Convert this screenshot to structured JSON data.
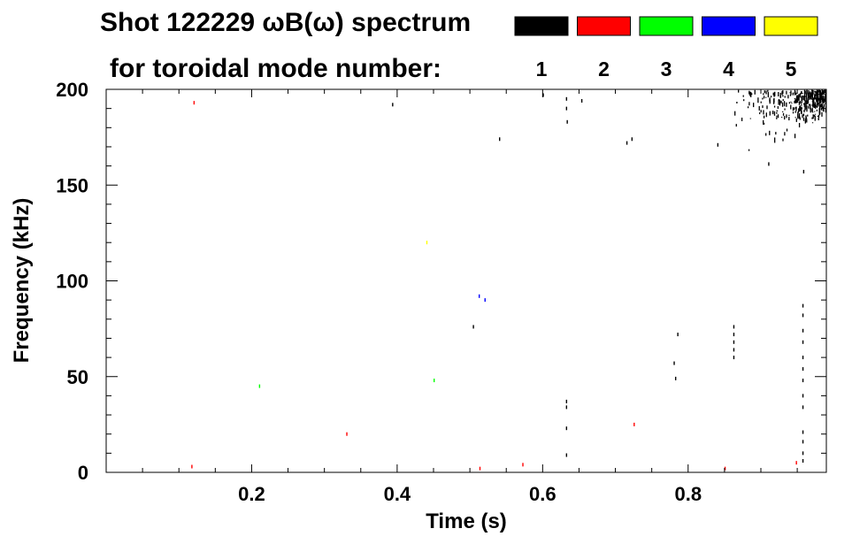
{
  "chart_data": {
    "type": "scatter",
    "title": "Shot 122229 ωB(ω) spectrum",
    "legend_caption": "for toroidal mode number:",
    "legend_placement": "top-right",
    "xlabel": "Time (s)",
    "ylabel": "Frequency (kHz)",
    "xlim": [
      0.0,
      0.99
    ],
    "ylim": [
      0,
      200
    ],
    "x_ticks": [
      0.2,
      0.4,
      0.6,
      0.8
    ],
    "x_tick_labels": [
      "0.2",
      "0.4",
      "0.6",
      "0.8"
    ],
    "y_ticks": [
      0,
      50,
      100,
      150,
      200
    ],
    "y_tick_labels": [
      "0",
      "50",
      "100",
      "150",
      "200"
    ],
    "grid": false,
    "series": [
      {
        "name": "1",
        "color": "#000000",
        "points": [
          [
            0.632,
            195
          ],
          [
            0.632,
            190
          ],
          [
            0.633,
            183
          ],
          [
            0.54,
            174
          ],
          [
            0.722,
            174
          ],
          [
            0.715,
            172
          ],
          [
            0.84,
            171
          ],
          [
            0.91,
            161
          ],
          [
            0.958,
            157
          ],
          [
            0.95,
            186
          ],
          [
            0.955,
            188
          ],
          [
            0.96,
            190
          ],
          [
            0.504,
            76
          ],
          [
            0.862,
            76
          ],
          [
            0.862,
            72
          ],
          [
            0.862,
            68
          ],
          [
            0.862,
            64
          ],
          [
            0.862,
            60
          ],
          [
            0.785,
            72
          ],
          [
            0.78,
            57
          ],
          [
            0.782,
            49
          ],
          [
            0.632,
            37
          ],
          [
            0.632,
            34
          ],
          [
            0.632,
            23
          ],
          [
            0.632,
            9
          ],
          [
            0.957,
            87
          ],
          [
            0.957,
            82
          ],
          [
            0.957,
            74
          ],
          [
            0.957,
            68
          ],
          [
            0.957,
            60
          ],
          [
            0.957,
            54
          ],
          [
            0.957,
            48
          ],
          [
            0.957,
            40
          ],
          [
            0.957,
            34
          ],
          [
            0.957,
            21
          ],
          [
            0.957,
            16
          ],
          [
            0.957,
            10
          ],
          [
            0.957,
            6
          ],
          [
            0.393,
            192
          ],
          [
            0.653,
            194
          ],
          [
            0.6,
            197
          ]
        ]
      },
      {
        "name": "2",
        "color": "#ff0000",
        "points": [
          [
            0.12,
            193
          ],
          [
            0.117,
            3
          ],
          [
            0.33,
            20
          ],
          [
            0.513,
            2
          ],
          [
            0.572,
            4
          ],
          [
            0.725,
            25
          ],
          [
            0.85,
            2
          ],
          [
            0.948,
            5
          ]
        ]
      },
      {
        "name": "3",
        "color": "#00ff00",
        "points": [
          [
            0.21,
            45
          ],
          [
            0.45,
            48
          ]
        ]
      },
      {
        "name": "4",
        "color": "#0000ff",
        "points": [
          [
            0.512,
            92
          ],
          [
            0.52,
            90
          ]
        ]
      },
      {
        "name": "5",
        "color": "#ffff00",
        "points": [
          [
            0.44,
            120
          ]
        ]
      }
    ],
    "dense_cluster": {
      "series": "1",
      "time_range": [
        0.8,
        0.99
      ],
      "frequency_range": [
        160,
        200
      ],
      "density_peak": {
        "time": 0.99,
        "frequency": 200
      }
    },
    "legend_entries": [
      {
        "label": "1",
        "color": "#000000"
      },
      {
        "label": "2",
        "color": "#ff0000"
      },
      {
        "label": "3",
        "color": "#00ff00"
      },
      {
        "label": "4",
        "color": "#0000ff"
      },
      {
        "label": "5",
        "color": "#ffff00"
      }
    ]
  }
}
